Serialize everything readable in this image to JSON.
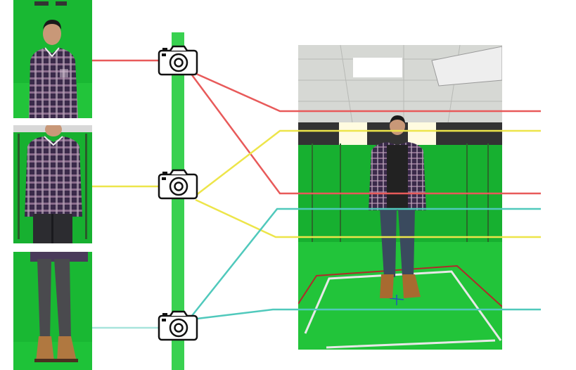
{
  "colors": {
    "green_screen": "#19b833",
    "green_screen_dark": "#0e8e25",
    "rig_bar": "#39d150",
    "line_red": "#e85a5a",
    "line_yellow": "#ede54a",
    "line_cyan": "#50c9bc",
    "camera_stroke": "#111111"
  },
  "photos": [
    {
      "name": "photo-upper-body",
      "shows": "upper-body"
    },
    {
      "name": "photo-torso",
      "shows": "torso"
    },
    {
      "name": "photo-legs",
      "shows": "legs"
    },
    {
      "name": "photo-full-scene",
      "shows": "full-body"
    }
  ],
  "cameras": [
    {
      "name": "camera-icon-top",
      "line_color": "red"
    },
    {
      "name": "camera-icon-middle",
      "line_color": "yellow"
    },
    {
      "name": "camera-icon-bottom",
      "line_color": "cyan"
    }
  ]
}
